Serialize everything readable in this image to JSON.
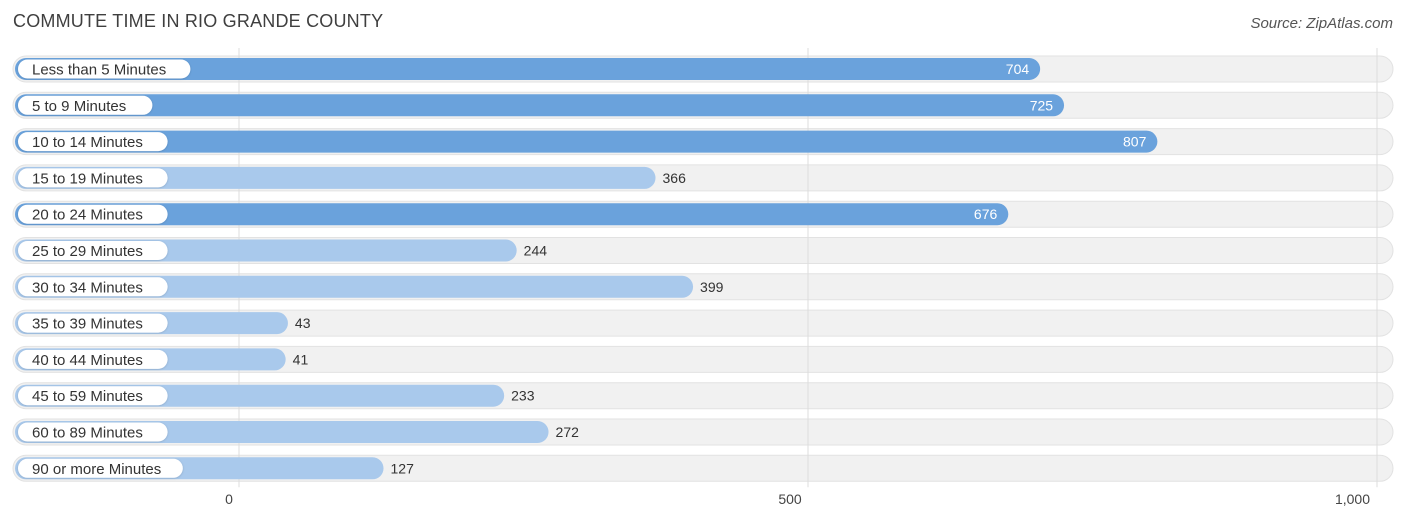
{
  "header": {
    "title": "COMMUTE TIME IN RIO GRANDE COUNTY",
    "source": "Source: ZipAtlas.com"
  },
  "colors": {
    "bar_strong": "#6aa2dc",
    "bar_light": "#a9c9ec",
    "track": "#f1f1f1",
    "track_border": "#e2e2e2",
    "grid": "#dddddd"
  },
  "chart_data": {
    "type": "bar",
    "orientation": "horizontal",
    "title": "COMMUTE TIME IN RIO GRANDE COUNTY",
    "xlabel": "",
    "ylabel": "",
    "xlim": [
      0,
      1000
    ],
    "ticks": [
      0,
      500,
      1000
    ],
    "tick_labels": [
      "0",
      "500",
      "1,000"
    ],
    "grid": true,
    "categories": [
      "Less than 5 Minutes",
      "5 to 9 Minutes",
      "10 to 14 Minutes",
      "15 to 19 Minutes",
      "20 to 24 Minutes",
      "25 to 29 Minutes",
      "30 to 34 Minutes",
      "35 to 39 Minutes",
      "40 to 44 Minutes",
      "45 to 59 Minutes",
      "60 to 89 Minutes",
      "90 or more Minutes"
    ],
    "values": [
      704,
      725,
      807,
      366,
      676,
      244,
      399,
      43,
      41,
      233,
      272,
      127
    ]
  }
}
